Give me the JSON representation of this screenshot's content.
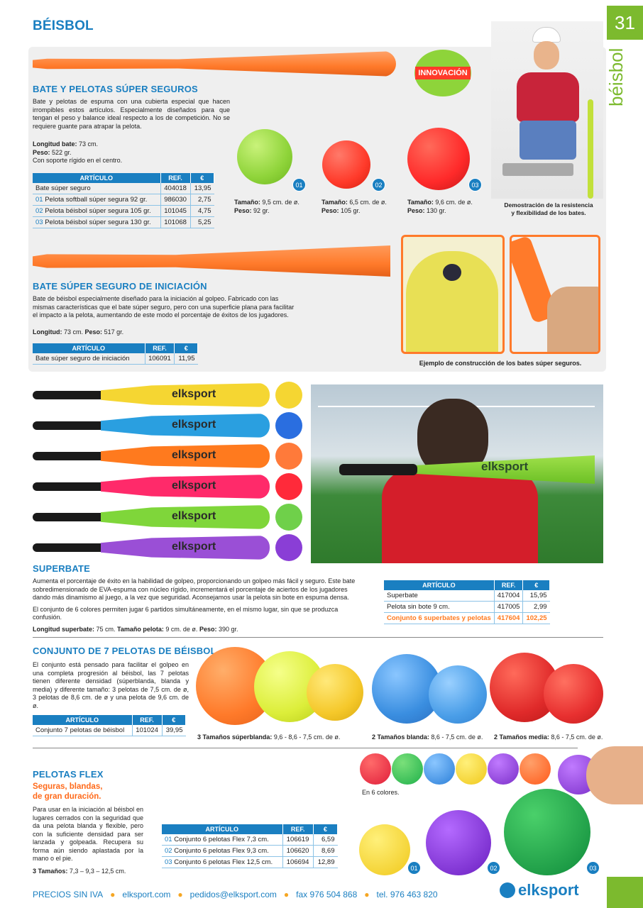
{
  "page": {
    "number": "31",
    "section": "BÉISBOL",
    "side_tab": "béisbol",
    "badge_innovacion": "INNOVACIÓN"
  },
  "bate_pelotas": {
    "title": "BATE Y PELOTAS SÚPER SEGUROS",
    "desc": "Bate y pelotas de espuma con una cubierta especial que hacen irrompibles estos artículos. Especialmente diseñados para que tengan el peso y balance ideal respecto a los de competición. No se requiere guante para atrapar la pelota.",
    "longitud_label": "Longitud bate:",
    "longitud_value": "73 cm.",
    "peso_label": "Peso:",
    "peso_value": "522 gr.",
    "soporte": "Con soporte rígido en el centro.",
    "table_headers": [
      "ARTÍCULO",
      "REF.",
      "€"
    ],
    "rows": [
      {
        "idx": "",
        "name": "Bate súper seguro",
        "ref": "404018",
        "price": "13,95"
      },
      {
        "idx": "01",
        "name": "Pelota softball súper segura 92 gr.",
        "ref": "986030",
        "price": "2,75"
      },
      {
        "idx": "02",
        "name": "Pelota béisbol súper segura 105 gr.",
        "ref": "101045",
        "price": "4,75"
      },
      {
        "idx": "03",
        "name": "Pelota béisbol súper segura 130 gr.",
        "ref": "101068",
        "price": "5,25"
      }
    ],
    "balls": [
      {
        "num": "01",
        "tam_label": "Tamaño:",
        "tam": "9,5 cm. de ø.",
        "peso_label": "Peso:",
        "peso": "92 gr.",
        "color": "#9fe03c"
      },
      {
        "num": "02",
        "tam_label": "Tamaño:",
        "tam": "6,5 cm. de ø.",
        "peso_label": "Peso:",
        "peso": "105 gr.",
        "color": "#ff3a2a"
      },
      {
        "num": "03",
        "tam_label": "Tamaño:",
        "tam": "9,6 cm. de ø.",
        "peso_label": "Peso:",
        "peso": "130 gr.",
        "color": "#ff2a2a"
      }
    ],
    "demo_caption_1": "Demostración de la resistencia",
    "demo_caption_2": "y flexibilidad de los bates."
  },
  "bate_iniciacion": {
    "title": "BATE SÚPER SEGURO DE INICIACIÓN",
    "desc": "Bate de béisbol especialmente diseñado para la iniciación al golpeo. Fabricado con las mismas características que el bate súper seguro, pero con una superficie plana para facilitar el impacto a la pelota, aumentando de este modo el porcentaje de éxitos de los jugadores.",
    "longitud_label": "Longitud:",
    "longitud_value": "73 cm.",
    "peso_label": "Peso:",
    "peso_value": "517 gr.",
    "table_headers": [
      "ARTÍCULO",
      "REF.",
      "€"
    ],
    "rows": [
      {
        "name": "Bate súper seguro de iniciación",
        "ref": "106091",
        "price": "11,95"
      }
    ],
    "caption": "Ejemplo de construcción de los bates súper seguros."
  },
  "superbate": {
    "title": "SUPERBATE",
    "brand": "elksport",
    "desc1": "Aumenta el porcentaje de éxito en la habilidad de golpeo, proporcionando un golpeo más fácil y seguro. Este bate sobredimensionado de EVA-espuma con núcleo rígido, incrementará el porcentaje de aciertos de los jugadores dando más dinamismo al juego, a la vez que seguridad. Aconsejamos usar la pelota sin bote en espuma densa.",
    "desc2": "El conjunto de 6 colores permiten jugar 6 partidos simultáneamente, en el mismo lugar, sin que se produzca confusión.",
    "spec_longitud_label": "Longitud superbate:",
    "spec_longitud": "75 cm.",
    "spec_tam_label": "Tamaño pelota:",
    "spec_tam": "9 cm. de ø.",
    "spec_peso_label": "Peso:",
    "spec_peso": "390 gr.",
    "table_headers": [
      "ARTÍCULO",
      "REF.",
      "€"
    ],
    "rows": [
      {
        "name": "Superbate",
        "ref": "417004",
        "price": "15,95"
      },
      {
        "name": "Pelota sin bote 9 cm.",
        "ref": "417005",
        "price": "2,99"
      },
      {
        "name": "Conjunto 6 superbates y pelotas",
        "ref": "417604",
        "price": "102,25"
      }
    ],
    "colors": [
      "#f5d632",
      "#2a9fe0",
      "#ff7a1e",
      "#ff2a6a",
      "#7fd63a",
      "#9a4fd6"
    ],
    "ball_colors": [
      "#f5d632",
      "#2a6ee0",
      "#ff7a3a",
      "#ff2a3a",
      "#6fd04a",
      "#8a3ed6"
    ]
  },
  "conjunto7": {
    "title": "CONJUNTO DE 7 PELOTAS DE BÉISBOL",
    "desc": "El conjunto está pensado para facilitar el golpeo en una completa progresión al béisbol, las 7 pelotas tienen diferente densidad (súperblanda, blanda y media) y diferente tamaño: 3 pelotas de 7,5 cm. de ø, 3 pelotas de 8,6 cm. de ø y una pelota de 9,6 cm. de ø.",
    "table_headers": [
      "ARTÍCULO",
      "REF.",
      "€"
    ],
    "rows": [
      {
        "name": "Conjunto 7 pelotas de béisbol",
        "ref": "101024",
        "price": "39,95"
      }
    ],
    "cap1_label": "3 Tamaños súperblanda:",
    "cap1": "9,6 - 8,6 - 7,5 cm. de ø.",
    "cap2_label": "2 Tamaños blanda:",
    "cap2": "8,6 - 7,5 cm. de ø.",
    "cap3_label": "2 Tamaños media:",
    "cap3": "8,6 - 7,5 cm. de ø."
  },
  "flex": {
    "title": "PELOTAS FLEX",
    "subtitle1": "Seguras, blandas,",
    "subtitle2": "de gran duración.",
    "desc": "Para usar en la iniciación al béisbol en lugares cerrados con la seguridad que da una pelota blanda y flexible, pero con la suficiente densidad para ser lanzada y golpeada. Recupera su forma aún siendo aplastada por la mano o el pie.",
    "sizes_label": "3 Tamaños:",
    "sizes": "7,3 – 9,3 – 12,5 cm.",
    "colors_caption": "En 6 colores.",
    "table_headers": [
      "ARTÍCULO",
      "REF.",
      "€"
    ],
    "rows": [
      {
        "idx": "01",
        "name": "Conjunto 6 pelotas Flex 7,3 cm.",
        "ref": "106619",
        "price": "6,59"
      },
      {
        "idx": "02",
        "name": "Conjunto 6 pelotas Flex 9,3 cm.",
        "ref": "106620",
        "price": "8,69"
      },
      {
        "idx": "03",
        "name": "Conjunto 6 pelotas Flex 12,5 cm.",
        "ref": "106694",
        "price": "12,89"
      }
    ],
    "badges": [
      "01",
      "02",
      "03"
    ]
  },
  "footer": {
    "items": [
      "PRECIOS SIN IVA",
      "elksport.com",
      "pedidos@elksport.com",
      "fax 976 504 868",
      "tel. 976 463 820"
    ],
    "brand": "elksport"
  }
}
